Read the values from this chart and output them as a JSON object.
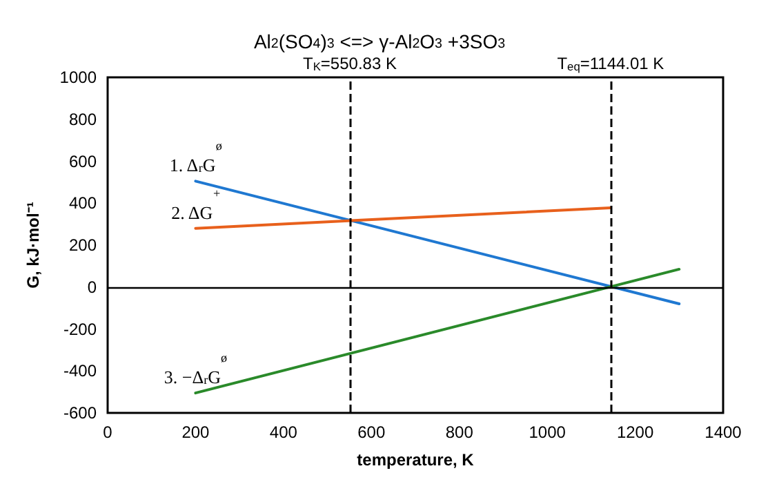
{
  "chart_data": {
    "type": "line",
    "title": "Al$_{2}$(SO$_{4}$)$_{3}$ <=> γ-Al$_{2}$O$_{3}$ +3SO$_{3}$",
    "xlabel": "temperature, K",
    "ylabel": "G, kJ·mol⁻¹",
    "xlim": [
      0,
      1400
    ],
    "xticks": [
      0,
      200,
      400,
      600,
      800,
      1000,
      1200,
      1400
    ],
    "ylim": [
      -600,
      1000
    ],
    "yticks": [
      -600,
      -400,
      -200,
      0,
      200,
      400,
      600,
      800,
      1000
    ],
    "grid": false,
    "legend": false,
    "marker": "none",
    "line_style": "solid",
    "series": [
      {
        "name": "1. Δ$_{r}$G$^{ø}$",
        "color": "#1f78d1",
        "x": [
          200,
          1300
        ],
        "values": [
          505,
          -80
        ]
      },
      {
        "name": "2. ΔG$^{+}$",
        "color": "#e8601c",
        "x": [
          200,
          1144
        ],
        "values": [
          280,
          378
        ]
      },
      {
        "name": "3. −Δ$_{r}$G$^{ø}$",
        "color": "#2a8a2a",
        "x": [
          200,
          1300
        ],
        "values": [
          -505,
          85
        ]
      }
    ],
    "ref_lines": [
      {
        "axis": "x",
        "value": 550.83,
        "label": "T$_{K}$=550.83 K",
        "color": "#000000",
        "line_style": "dashed"
      },
      {
        "axis": "x",
        "value": 1144.01,
        "label": "T$_{eq}$=1144.01 K",
        "color": "#000000",
        "line_style": "dashed"
      },
      {
        "axis": "y",
        "value": 0,
        "label": null,
        "color": "#000000",
        "line_style": "solid"
      }
    ]
  }
}
